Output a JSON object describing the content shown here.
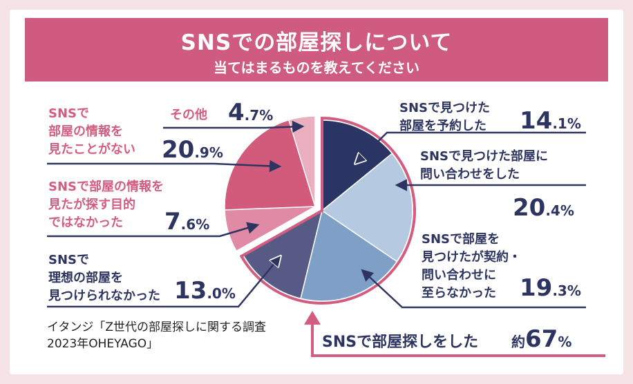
{
  "header": {
    "title": "SNSでの部屋探しについて",
    "subtitle": "当てはまるものを教えてください"
  },
  "colors": {
    "banner": "#cf5c80",
    "navy": "#2d3460",
    "pink": "#d25d80"
  },
  "chart_data": {
    "type": "pie",
    "unit": "%",
    "slices": [
      {
        "label": "SNSで見つけた部屋を予約した",
        "value": 14.1,
        "display_int": "14",
        "display_dec": ".1",
        "color": "#2b3564"
      },
      {
        "label": "SNSで見つけた部屋に問い合わせをした",
        "value": 20.4,
        "display_int": "20",
        "display_dec": ".4",
        "color": "#b5cae0"
      },
      {
        "label": "SNSで部屋を見つけたが契約・問い合わせに至らなかった",
        "value": 19.3,
        "display_int": "19",
        "display_dec": ".3",
        "color": "#7ea0c7"
      },
      {
        "label": "SNSで理想の部屋を見つけられなかった",
        "value": 13.0,
        "display_int": "13",
        "display_dec": ".0",
        "color": "#565a84"
      },
      {
        "label": "SNSで部屋の情報を見たが探す目的ではなかった",
        "value": 7.6,
        "display_int": "7",
        "display_dec": ".6",
        "color": "#e08aa5"
      },
      {
        "label": "SNSで部屋の情報を見たことがない",
        "value": 20.9,
        "display_int": "20",
        "display_dec": ".9",
        "color": "#d25b7c"
      },
      {
        "label": "その他",
        "value": 4.7,
        "display_int": "4",
        "display_dec": ".7",
        "color": "#eab0bf"
      }
    ],
    "summary": {
      "label": "SNSで部屋探しをした",
      "prefix": "約",
      "value": "67",
      "unit": "%"
    }
  },
  "labels": {
    "s0": [
      "SNSで見つけた",
      "部屋を予約した"
    ],
    "s1": [
      "SNSで見つけた部屋に",
      "問い合わせをした"
    ],
    "s2": [
      "SNSで部屋を",
      "見つけたが契約・",
      "問い合わせに",
      "至らなかった"
    ],
    "s3": [
      "SNSで",
      "理想の部屋を",
      "見つけられなかった"
    ],
    "s4": [
      "SNSで部屋の情報を",
      "見たが探す目的",
      "ではなかった"
    ],
    "s5": [
      "SNSで",
      "部屋の情報を",
      "見たことがない"
    ],
    "s6": [
      "その他"
    ]
  },
  "source": {
    "line1": "イタンジ「Z世代の部屋探しに関する調査",
    "line2": "2023年OHEYAGO」"
  }
}
